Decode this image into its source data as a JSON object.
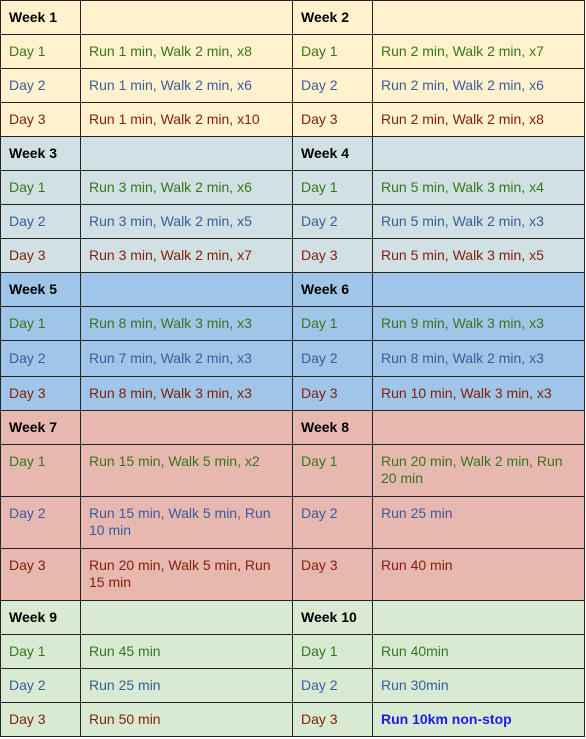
{
  "groups": [
    {
      "left": {
        "week": "Week 1",
        "days": [
          {
            "day": "Day 1",
            "plan": "Run 1 min, Walk 2 min, x8"
          },
          {
            "day": "Day 2",
            "plan": "Run 1 min, Walk 2 min, x6"
          },
          {
            "day": "Day 3",
            "plan": "Run 1 min, Walk 2 min, x10"
          }
        ]
      },
      "right": {
        "week": "Week 2",
        "days": [
          {
            "day": "Day 1",
            "plan": "Run 2 min, Walk 2 min, x7"
          },
          {
            "day": "Day 2",
            "plan": "Run 2 min, Walk 2 min, x6"
          },
          {
            "day": "Day 3",
            "plan": "Run 2 min, Walk 2 min, x8"
          }
        ]
      }
    },
    {
      "left": {
        "week": "Week 3",
        "days": [
          {
            "day": "Day 1",
            "plan": "Run 3 min, Walk 2 min, x6"
          },
          {
            "day": "Day 2",
            "plan": "Run 3 min, Walk 2 min, x5"
          },
          {
            "day": "Day 3",
            "plan": "Run 3 min, Walk 2 min, x7"
          }
        ]
      },
      "right": {
        "week": "Week 4",
        "days": [
          {
            "day": "Day 1",
            "plan": "Run 5 min, Walk 3 min, x4"
          },
          {
            "day": "Day 2",
            "plan": "Run 5 min, Walk 2 min, x3"
          },
          {
            "day": "Day 3",
            "plan": "Run 5 min, Walk 3 min, x5"
          }
        ]
      }
    },
    {
      "left": {
        "week": "Week 5",
        "days": [
          {
            "day": "Day 1",
            "plan": "Run 8 min, Walk 3 min, x3"
          },
          {
            "day": "Day 2",
            "plan": "Run 7 min, Walk 2 min, x3"
          },
          {
            "day": "Day 3",
            "plan": "Run 8 min, Walk 3 min, x3"
          }
        ]
      },
      "right": {
        "week": "Week 6",
        "days": [
          {
            "day": "Day 1",
            "plan": "Run 9 min, Walk 3 min, x3"
          },
          {
            "day": "Day 2",
            "plan": "Run 8 min, Walk 2 min, x3"
          },
          {
            "day": "Day 3",
            "plan": "Run 10 min, Walk 3 min, x3"
          }
        ]
      }
    },
    {
      "left": {
        "week": "Week 7",
        "days": [
          {
            "day": "Day 1",
            "plan": "Run 15 min, Walk 5 min, x2"
          },
          {
            "day": "Day 2",
            "plan": "Run 15 min, Walk 5 min, Run 10 min"
          },
          {
            "day": "Day 3",
            "plan": "Run 20 min, Walk 5 min, Run 15 min"
          }
        ]
      },
      "right": {
        "week": "Week 8",
        "days": [
          {
            "day": "Day 1",
            "plan": "Run 20 min, Walk 2 min, Run 20 min"
          },
          {
            "day": "Day 2",
            "plan": "Run 25 min"
          },
          {
            "day": "Day 3",
            "plan": "Run 40 min"
          }
        ]
      }
    },
    {
      "left": {
        "week": "Week 9",
        "days": [
          {
            "day": "Day 1",
            "plan": "Run 45 min"
          },
          {
            "day": "Day 2",
            "plan": "Run 25 min"
          },
          {
            "day": "Day 3",
            "plan": "Run 50 min"
          }
        ]
      },
      "right": {
        "week": "Week 10",
        "days": [
          {
            "day": "Day 1",
            "plan": "Run 40min"
          },
          {
            "day": "Day 2",
            "plan": "Run 30min"
          },
          {
            "day": "Day 3",
            "plan": "Run 10km non-stop"
          }
        ]
      }
    }
  ],
  "colors": {
    "group_backgrounds": [
      "#fff2cc",
      "#d0e0e3",
      "#9fc5e8",
      "#e6b8af",
      "#d9ead3"
    ],
    "day1_text": "#38761d",
    "day2_text": "#3d5b9e",
    "day3_text": "#85200c",
    "final_goal_text": "#1a1af0",
    "border": "#222222"
  }
}
